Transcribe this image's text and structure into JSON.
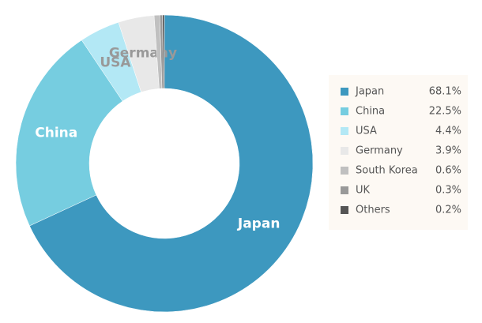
{
  "chart_data": {
    "type": "donut",
    "categories": [
      "Japan",
      "China",
      "USA",
      "Germany",
      "South Korea",
      "UK",
      "Others"
    ],
    "values": [
      68.1,
      22.5,
      4.4,
      3.9,
      0.6,
      0.3,
      0.2
    ],
    "value_labels": [
      "68.1%",
      "22.5%",
      "4.4%",
      "3.9%",
      "0.6%",
      "0.3%",
      "0.2%"
    ],
    "colors": [
      "#3d98bf",
      "#76cde0",
      "#b3e8f5",
      "#e8e8e8",
      "#c0c0c0",
      "#999999",
      "#555555"
    ],
    "legend": "right"
  }
}
